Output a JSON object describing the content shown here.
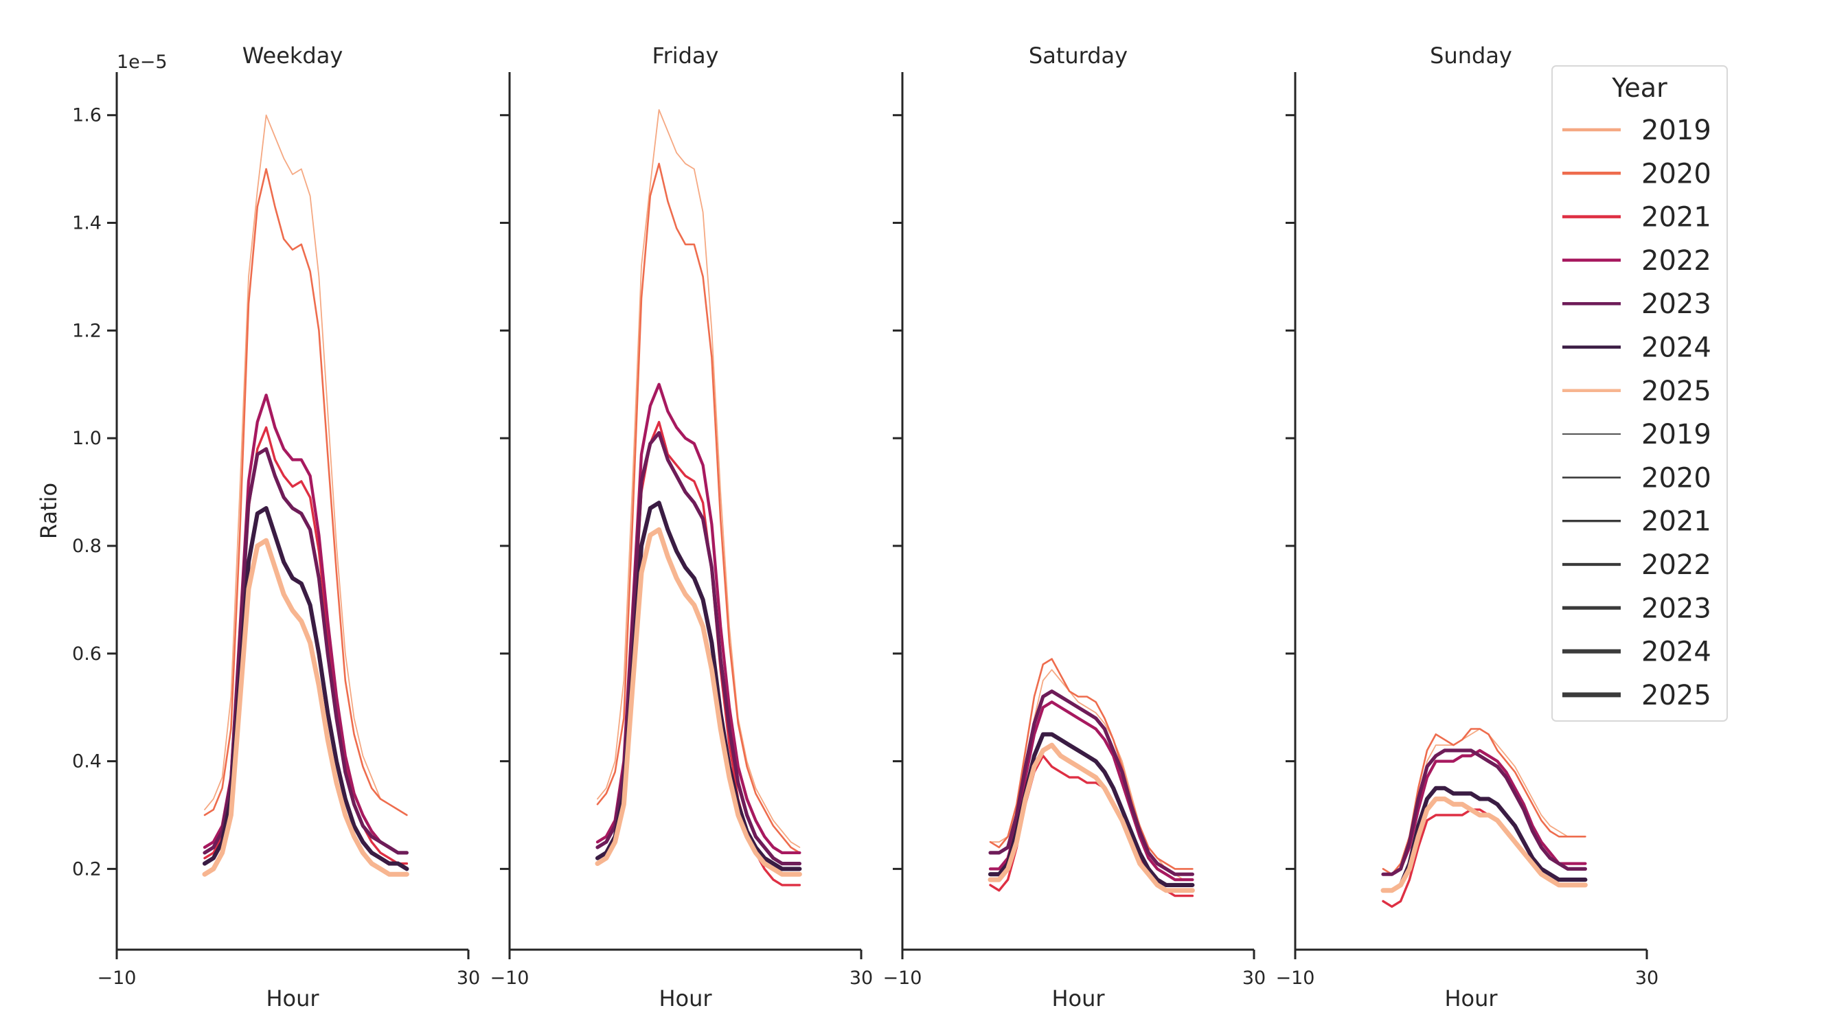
{
  "legend": {
    "title": "Year",
    "location": "right",
    "hue_entries": [
      {
        "label": "2019",
        "color": "#F5A882"
      },
      {
        "label": "2020",
        "color": "#EE6C4D"
      },
      {
        "label": "2021",
        "color": "#DE2F43"
      },
      {
        "label": "2022",
        "color": "#A7195F"
      },
      {
        "label": "2023",
        "color": "#6E1C58"
      },
      {
        "label": "2024",
        "color": "#3A1C43"
      },
      {
        "label": "2025",
        "color": "#F7B590"
      }
    ],
    "size_entries": [
      {
        "label": "2019",
        "width": 1.8
      },
      {
        "label": "2020",
        "width": 2.6
      },
      {
        "label": "2021",
        "width": 3.4
      },
      {
        "label": "2022",
        "width": 4.3
      },
      {
        "label": "2023",
        "width": 5.2
      },
      {
        "label": "2024",
        "width": 6.1
      },
      {
        "label": "2025",
        "width": 7.0
      }
    ]
  },
  "chart_data": [
    {
      "type": "line",
      "title": "Weekday",
      "xlabel": "Hour",
      "ylabel": "Ratio",
      "y_offset_label": "1e−5",
      "xlim": [
        -10,
        30
      ],
      "ylim": [
        0.05,
        1.68
      ],
      "xticks": [
        -10,
        30
      ],
      "yticks": [
        0.2,
        0.4,
        0.6,
        0.8,
        1.0,
        1.2,
        1.4,
        1.6
      ],
      "grid": false,
      "x": [
        0,
        1,
        2,
        3,
        4,
        5,
        6,
        7,
        8,
        9,
        10,
        11,
        12,
        13,
        14,
        15,
        16,
        17,
        18,
        19,
        20,
        21,
        22,
        23
      ],
      "series": [
        {
          "name": "2019",
          "values": [
            0.31,
            0.33,
            0.37,
            0.52,
            0.9,
            1.3,
            1.46,
            1.6,
            1.56,
            1.52,
            1.49,
            1.5,
            1.45,
            1.3,
            1.05,
            0.8,
            0.6,
            0.48,
            0.41,
            0.37,
            0.33,
            0.32,
            0.31,
            0.3
          ]
        },
        {
          "name": "2020",
          "values": [
            0.3,
            0.31,
            0.35,
            0.46,
            0.82,
            1.25,
            1.43,
            1.5,
            1.43,
            1.37,
            1.35,
            1.36,
            1.31,
            1.2,
            0.97,
            0.75,
            0.55,
            0.45,
            0.39,
            0.35,
            0.33,
            0.32,
            0.31,
            0.3
          ]
        },
        {
          "name": "2021",
          "values": [
            0.22,
            0.23,
            0.26,
            0.35,
            0.6,
            0.87,
            0.98,
            1.02,
            0.96,
            0.93,
            0.91,
            0.92,
            0.89,
            0.79,
            0.64,
            0.5,
            0.39,
            0.32,
            0.28,
            0.25,
            0.23,
            0.22,
            0.21,
            0.21
          ]
        },
        {
          "name": "2022",
          "values": [
            0.24,
            0.25,
            0.28,
            0.37,
            0.64,
            0.92,
            1.03,
            1.08,
            1.02,
            0.98,
            0.96,
            0.96,
            0.93,
            0.82,
            0.66,
            0.52,
            0.41,
            0.34,
            0.3,
            0.27,
            0.25,
            0.24,
            0.23,
            0.23
          ]
        },
        {
          "name": "2023",
          "values": [
            0.23,
            0.24,
            0.27,
            0.36,
            0.62,
            0.88,
            0.97,
            0.98,
            0.93,
            0.89,
            0.87,
            0.86,
            0.83,
            0.74,
            0.6,
            0.48,
            0.38,
            0.32,
            0.28,
            0.26,
            0.25,
            0.24,
            0.23,
            0.23
          ]
        },
        {
          "name": "2024",
          "values": [
            0.21,
            0.22,
            0.25,
            0.33,
            0.55,
            0.77,
            0.86,
            0.87,
            0.82,
            0.77,
            0.74,
            0.73,
            0.69,
            0.6,
            0.49,
            0.4,
            0.33,
            0.28,
            0.25,
            0.23,
            0.22,
            0.21,
            0.21,
            0.2
          ]
        },
        {
          "name": "2025",
          "values": [
            0.19,
            0.2,
            0.23,
            0.3,
            0.51,
            0.72,
            0.8,
            0.81,
            0.76,
            0.71,
            0.68,
            0.66,
            0.62,
            0.54,
            0.44,
            0.36,
            0.3,
            0.26,
            0.23,
            0.21,
            0.2,
            0.19,
            0.19,
            0.19
          ]
        }
      ]
    },
    {
      "type": "line",
      "title": "Friday",
      "xlabel": "Hour",
      "ylabel": "",
      "xlim": [
        -10,
        30
      ],
      "ylim": [
        0.05,
        1.68
      ],
      "xticks": [
        -10,
        30
      ],
      "yticks": [
        0.2,
        0.4,
        0.6,
        0.8,
        1.0,
        1.2,
        1.4,
        1.6
      ],
      "grid": false,
      "x": [
        0,
        1,
        2,
        3,
        4,
        5,
        6,
        7,
        8,
        9,
        10,
        11,
        12,
        13,
        14,
        15,
        16,
        17,
        18,
        19,
        20,
        21,
        22,
        23
      ],
      "series": [
        {
          "name": "2019",
          "values": [
            0.33,
            0.35,
            0.4,
            0.55,
            0.92,
            1.32,
            1.47,
            1.61,
            1.57,
            1.53,
            1.51,
            1.5,
            1.42,
            1.2,
            0.9,
            0.65,
            0.48,
            0.4,
            0.35,
            0.32,
            0.29,
            0.27,
            0.25,
            0.24
          ]
        },
        {
          "name": "2020",
          "values": [
            0.32,
            0.34,
            0.38,
            0.48,
            0.85,
            1.26,
            1.45,
            1.51,
            1.44,
            1.39,
            1.36,
            1.36,
            1.3,
            1.15,
            0.85,
            0.62,
            0.47,
            0.39,
            0.34,
            0.31,
            0.28,
            0.26,
            0.24,
            0.23
          ]
        },
        {
          "name": "2021",
          "values": [
            0.22,
            0.23,
            0.26,
            0.36,
            0.62,
            0.9,
            0.99,
            1.03,
            0.97,
            0.95,
            0.93,
            0.92,
            0.88,
            0.75,
            0.57,
            0.43,
            0.33,
            0.27,
            0.23,
            0.2,
            0.18,
            0.17,
            0.17,
            0.17
          ]
        },
        {
          "name": "2022",
          "values": [
            0.25,
            0.26,
            0.29,
            0.4,
            0.68,
            0.97,
            1.06,
            1.1,
            1.05,
            1.02,
            1.0,
            0.99,
            0.95,
            0.84,
            0.65,
            0.5,
            0.39,
            0.33,
            0.29,
            0.26,
            0.24,
            0.23,
            0.23,
            0.23
          ]
        },
        {
          "name": "2023",
          "values": [
            0.24,
            0.25,
            0.28,
            0.38,
            0.65,
            0.92,
            0.99,
            1.01,
            0.96,
            0.93,
            0.9,
            0.88,
            0.85,
            0.76,
            0.59,
            0.46,
            0.36,
            0.3,
            0.26,
            0.24,
            0.22,
            0.21,
            0.21,
            0.21
          ]
        },
        {
          "name": "2024",
          "values": [
            0.22,
            0.23,
            0.26,
            0.34,
            0.57,
            0.8,
            0.87,
            0.88,
            0.83,
            0.79,
            0.76,
            0.74,
            0.7,
            0.62,
            0.49,
            0.39,
            0.32,
            0.27,
            0.24,
            0.22,
            0.21,
            0.2,
            0.2,
            0.2
          ]
        },
        {
          "name": "2025",
          "values": [
            0.21,
            0.22,
            0.25,
            0.32,
            0.54,
            0.75,
            0.82,
            0.83,
            0.78,
            0.74,
            0.71,
            0.69,
            0.65,
            0.57,
            0.46,
            0.37,
            0.3,
            0.26,
            0.23,
            0.21,
            0.2,
            0.19,
            0.19,
            0.19
          ]
        }
      ]
    },
    {
      "type": "line",
      "title": "Saturday",
      "xlabel": "Hour",
      "ylabel": "",
      "xlim": [
        -10,
        30
      ],
      "ylim": [
        0.05,
        1.68
      ],
      "xticks": [
        -10,
        30
      ],
      "yticks": [
        0.2,
        0.4,
        0.6,
        0.8,
        1.0,
        1.2,
        1.4,
        1.6
      ],
      "grid": false,
      "x": [
        0,
        1,
        2,
        3,
        4,
        5,
        6,
        7,
        8,
        9,
        10,
        11,
        12,
        13,
        14,
        15,
        16,
        17,
        18,
        19,
        20,
        21,
        22,
        23
      ],
      "series": [
        {
          "name": "2019",
          "values": [
            0.25,
            0.25,
            0.26,
            0.3,
            0.39,
            0.48,
            0.55,
            0.57,
            0.55,
            0.53,
            0.51,
            0.5,
            0.49,
            0.47,
            0.44,
            0.4,
            0.34,
            0.28,
            0.24,
            0.22,
            0.2,
            0.19,
            0.18,
            0.18
          ]
        },
        {
          "name": "2020",
          "values": [
            0.25,
            0.24,
            0.26,
            0.32,
            0.42,
            0.52,
            0.58,
            0.59,
            0.56,
            0.53,
            0.52,
            0.52,
            0.51,
            0.48,
            0.44,
            0.39,
            0.33,
            0.28,
            0.24,
            0.22,
            0.21,
            0.2,
            0.2,
            0.2
          ]
        },
        {
          "name": "2021",
          "values": [
            0.17,
            0.16,
            0.18,
            0.24,
            0.32,
            0.38,
            0.41,
            0.39,
            0.38,
            0.37,
            0.37,
            0.36,
            0.36,
            0.35,
            0.32,
            0.29,
            0.26,
            0.22,
            0.19,
            0.17,
            0.16,
            0.15,
            0.15,
            0.15
          ]
        },
        {
          "name": "2022",
          "values": [
            0.2,
            0.2,
            0.22,
            0.28,
            0.37,
            0.45,
            0.5,
            0.51,
            0.5,
            0.49,
            0.48,
            0.47,
            0.46,
            0.44,
            0.41,
            0.36,
            0.31,
            0.26,
            0.22,
            0.2,
            0.19,
            0.18,
            0.18,
            0.18
          ]
        },
        {
          "name": "2023",
          "values": [
            0.23,
            0.23,
            0.24,
            0.3,
            0.39,
            0.47,
            0.52,
            0.53,
            0.52,
            0.51,
            0.5,
            0.49,
            0.48,
            0.46,
            0.42,
            0.38,
            0.32,
            0.27,
            0.23,
            0.21,
            0.2,
            0.19,
            0.19,
            0.19
          ]
        },
        {
          "name": "2024",
          "values": [
            0.19,
            0.19,
            0.21,
            0.27,
            0.34,
            0.41,
            0.45,
            0.45,
            0.44,
            0.43,
            0.42,
            0.41,
            0.4,
            0.38,
            0.35,
            0.31,
            0.27,
            0.23,
            0.2,
            0.18,
            0.17,
            0.17,
            0.17,
            0.17
          ]
        },
        {
          "name": "2025",
          "values": [
            0.18,
            0.18,
            0.2,
            0.25,
            0.33,
            0.39,
            0.42,
            0.43,
            0.41,
            0.4,
            0.39,
            0.38,
            0.37,
            0.35,
            0.32,
            0.29,
            0.25,
            0.21,
            0.19,
            0.17,
            0.16,
            0.16,
            0.16,
            0.16
          ]
        }
      ]
    },
    {
      "type": "line",
      "title": "Sunday",
      "xlabel": "Hour",
      "ylabel": "",
      "xlim": [
        -10,
        30
      ],
      "ylim": [
        0.05,
        1.68
      ],
      "xticks": [
        -10,
        30
      ],
      "yticks": [
        0.2,
        0.4,
        0.6,
        0.8,
        1.0,
        1.2,
        1.4,
        1.6
      ],
      "grid": false,
      "x": [
        0,
        1,
        2,
        3,
        4,
        5,
        6,
        7,
        8,
        9,
        10,
        11,
        12,
        13,
        14,
        15,
        16,
        17,
        18,
        19,
        20,
        21,
        22,
        23
      ],
      "series": [
        {
          "name": "2019",
          "values": [
            0.2,
            0.19,
            0.2,
            0.24,
            0.32,
            0.4,
            0.43,
            0.43,
            0.43,
            0.44,
            0.45,
            0.46,
            0.45,
            0.43,
            0.41,
            0.39,
            0.36,
            0.33,
            0.3,
            0.28,
            0.27,
            0.26,
            0.26,
            0.26
          ]
        },
        {
          "name": "2020",
          "values": [
            0.2,
            0.19,
            0.21,
            0.26,
            0.35,
            0.42,
            0.45,
            0.44,
            0.43,
            0.44,
            0.46,
            0.46,
            0.45,
            0.42,
            0.4,
            0.38,
            0.35,
            0.32,
            0.29,
            0.27,
            0.26,
            0.26,
            0.26,
            0.26
          ]
        },
        {
          "name": "2021",
          "values": [
            0.14,
            0.13,
            0.14,
            0.18,
            0.24,
            0.29,
            0.3,
            0.3,
            0.3,
            0.3,
            0.31,
            0.31,
            0.3,
            0.29,
            0.27,
            0.25,
            0.23,
            0.21,
            0.19,
            0.18,
            0.17,
            0.17,
            0.17,
            0.17
          ]
        },
        {
          "name": "2022",
          "values": [
            0.19,
            0.19,
            0.2,
            0.24,
            0.31,
            0.37,
            0.4,
            0.4,
            0.4,
            0.41,
            0.41,
            0.42,
            0.41,
            0.4,
            0.38,
            0.35,
            0.32,
            0.28,
            0.25,
            0.23,
            0.21,
            0.21,
            0.21,
            0.21
          ]
        },
        {
          "name": "2023",
          "values": [
            0.19,
            0.19,
            0.2,
            0.25,
            0.33,
            0.39,
            0.41,
            0.42,
            0.42,
            0.42,
            0.42,
            0.41,
            0.4,
            0.39,
            0.37,
            0.34,
            0.31,
            0.27,
            0.24,
            0.22,
            0.21,
            0.2,
            0.2,
            0.2
          ]
        },
        {
          "name": "2024",
          "values": [
            0.16,
            0.16,
            0.17,
            0.21,
            0.28,
            0.33,
            0.35,
            0.35,
            0.34,
            0.34,
            0.34,
            0.33,
            0.33,
            0.32,
            0.3,
            0.28,
            0.25,
            0.22,
            0.2,
            0.19,
            0.18,
            0.18,
            0.18,
            0.18
          ]
        },
        {
          "name": "2025",
          "values": [
            0.16,
            0.16,
            0.17,
            0.2,
            0.26,
            0.31,
            0.33,
            0.33,
            0.32,
            0.32,
            0.31,
            0.3,
            0.3,
            0.29,
            0.27,
            0.25,
            0.23,
            0.21,
            0.19,
            0.18,
            0.17,
            0.17,
            0.17,
            0.17
          ]
        }
      ]
    }
  ]
}
